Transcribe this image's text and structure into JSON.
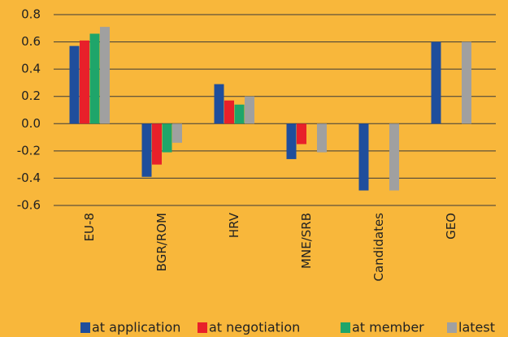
{
  "chart_data": {
    "type": "bar",
    "categories": [
      "EU-8",
      "BGR/ROM",
      "HRV",
      "MNE/SRB",
      "Candidates",
      "GEO"
    ],
    "series": [
      {
        "name": "at application",
        "color": "#1f4e9c",
        "values": [
          0.57,
          -0.39,
          0.29,
          -0.26,
          -0.49,
          0.6
        ]
      },
      {
        "name": "at negotiation",
        "color": "#e8202a",
        "values": [
          0.61,
          -0.3,
          0.17,
          -0.15,
          null,
          null
        ]
      },
      {
        "name": "at member",
        "color": "#1fa56a",
        "values": [
          0.66,
          -0.21,
          0.14,
          null,
          null,
          null
        ]
      },
      {
        "name": "latest",
        "color": "#a0a0a0",
        "values": [
          0.71,
          -0.14,
          0.2,
          -0.21,
          -0.49,
          0.6
        ]
      }
    ],
    "ylim": [
      -0.6,
      0.8
    ],
    "yticks": [
      0.8,
      0.6,
      0.4,
      0.2,
      {
        "value": 0,
        "label": "0.0"
      },
      -0.2,
      -0.4,
      -0.6
    ],
    "grid": true,
    "legend": "bottom"
  }
}
